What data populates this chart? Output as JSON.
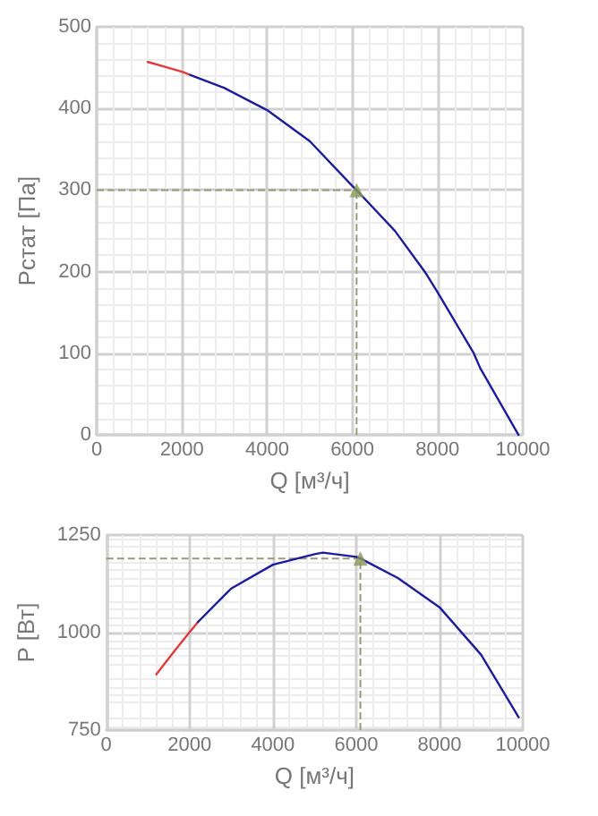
{
  "chart_data": [
    {
      "type": "line",
      "xlabel": "Q [м³/ч]",
      "ylabel": "Рстат [Па]",
      "xlim": [
        0,
        10000
      ],
      "xticks": [
        0,
        2000,
        4000,
        6000,
        8000,
        10000
      ],
      "ylim": [
        0,
        500
      ],
      "yticks": [
        0,
        100,
        200,
        300,
        400,
        500
      ],
      "grid": true,
      "marker": "none",
      "line_style": "solid",
      "series": [
        {
          "color": "#e03a3a",
          "x": [
            1200,
            1600,
            2000,
            2200
          ],
          "values": [
            457,
            451,
            445,
            441
          ]
        },
        {
          "color": "#1c1c9c",
          "x": [
            2200,
            3000,
            4000,
            5000,
            6000,
            6100,
            7000,
            7700,
            8000,
            8850,
            9000,
            9900
          ],
          "values": [
            441,
            425,
            398,
            360,
            305,
            300,
            250,
            200,
            175,
            100,
            82,
            0
          ]
        },
        {
          "type": "scatter",
          "marker": "triangle",
          "color": "#8a9a5b",
          "x": [
            6100
          ],
          "values": [
            300
          ]
        }
      ],
      "ref_lines": [
        {
          "axis": "x",
          "value": 6100,
          "color": "#9a9a7a",
          "line_style": "dashed"
        },
        {
          "axis": "y",
          "value": 300,
          "color": "#9a9a7a",
          "line_style": "dashed"
        }
      ]
    },
    {
      "type": "line",
      "xlabel": "Q [м³/ч]",
      "ylabel": "P [Вт]",
      "xlim": [
        0,
        10000
      ],
      "xticks": [
        0,
        2000,
        4000,
        6000,
        8000,
        10000
      ],
      "ylim": [
        750,
        1250
      ],
      "yticks": [
        750,
        1000,
        1250
      ],
      "grid": true,
      "marker": "none",
      "line_style": "solid",
      "series": [
        {
          "color": "#e03a3a",
          "x": [
            1200,
            1600,
            2000,
            2200
          ],
          "values": [
            893,
            948,
            1001,
            1027
          ]
        },
        {
          "color": "#1c1c9c",
          "x": [
            2200,
            3000,
            4000,
            5000,
            5200,
            6000,
            6100,
            7000,
            8000,
            9000,
            9900
          ],
          "values": [
            1027,
            1113,
            1174,
            1201,
            1205,
            1194,
            1190,
            1140,
            1065,
            943,
            783
          ]
        },
        {
          "type": "scatter",
          "marker": "triangle",
          "color": "#8a9a5b",
          "x": [
            6100
          ],
          "values": [
            1190
          ]
        }
      ],
      "ref_lines": [
        {
          "axis": "x",
          "value": 6100,
          "color": "#9a9a7a",
          "line_style": "dashed"
        },
        {
          "axis": "y",
          "value": 1190,
          "color": "#9a9a7a",
          "line_style": "dashed"
        }
      ]
    }
  ]
}
